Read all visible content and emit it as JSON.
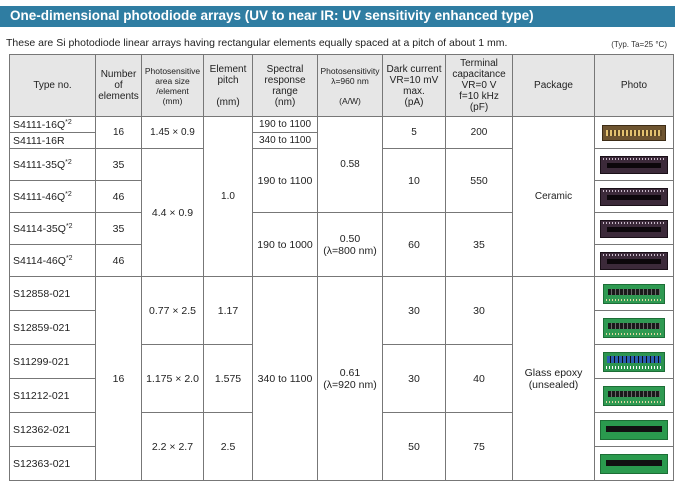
{
  "title": "One-dimensional photodiode arrays (UV to near IR: UV sensitivity enhanced type)",
  "intro": "These are Si photodiode linear arrays having rectangular elements equally spaced at a pitch of about 1 mm.",
  "conditions": "(Typ. Ta=25 °C)",
  "headers": {
    "type": "Type no.",
    "elements": "Number of elements",
    "area": [
      "Photosensitive",
      "area size",
      "/element",
      "(mm)"
    ],
    "pitch": [
      "Element",
      "pitch",
      "",
      "(mm)"
    ],
    "spectral": [
      "Spectral",
      "response",
      "range",
      "(nm)"
    ],
    "sensitivity": [
      "Photosensitivity",
      "λ=960 nm",
      "",
      "(A/W)"
    ],
    "dark": [
      "Dark current",
      "VR=10 mV",
      "max.",
      "(pA)"
    ],
    "capacitance": [
      "Terminal",
      "capacitance",
      "VR=0 V",
      "f=10 kHz",
      "(pF)"
    ],
    "package": "Package",
    "photo": "Photo"
  },
  "footnote_mark": "*2",
  "rows": [
    {
      "type": "S4111-16Q",
      "mark": true
    },
    {
      "type": "S4111-16R",
      "mark": false
    },
    {
      "type": "S4111-35Q",
      "mark": true
    },
    {
      "type": "S4111-46Q",
      "mark": true
    },
    {
      "type": "S4114-35Q",
      "mark": true
    },
    {
      "type": "S4114-46Q",
      "mark": true
    },
    {
      "type": "S12858-021",
      "mark": false
    },
    {
      "type": "S12859-021",
      "mark": false
    },
    {
      "type": "S11299-021",
      "mark": false
    },
    {
      "type": "S11212-021",
      "mark": false
    },
    {
      "type": "S12362-021",
      "mark": false
    },
    {
      "type": "S12363-021",
      "mark": false
    }
  ],
  "values": {
    "elements_16": "16",
    "elements_35": "35",
    "elements_46": "46",
    "elements_35b": "35",
    "elements_46b": "46",
    "elements_glass": "16",
    "area_s4111_16": "1.45 × 0.9",
    "area_ceramic": "4.4 × 0.9",
    "area_s1285x": "0.77 × 2.5",
    "area_s112xx": "1.175 × 2.0",
    "area_s1236x": "2.2 × 2.7",
    "pitch_ceramic": "1.0",
    "pitch_s1285x": "1.17",
    "pitch_s112xx": "1.575",
    "pitch_s1236x": "2.5",
    "spectral_16q": "190 to 1100",
    "spectral_16r": "340 to 1100",
    "spectral_s4111": "190 to 1100",
    "spectral_s4114": "190 to 1000",
    "spectral_glass": "340 to 1100",
    "sens_s4111": "0.58",
    "sens_s4114": "0.50",
    "sens_s4114_note": "(λ=800 nm)",
    "sens_glass": "0.61",
    "sens_glass_note": "(λ=920 nm)",
    "dark_16": "5",
    "dark_s4111": "10",
    "dark_s4114": "60",
    "dark_s1285x": "30",
    "dark_s112xx": "30",
    "dark_s1236x": "50",
    "cap_16": "200",
    "cap_s4111": "550",
    "cap_s4114": "35",
    "cap_s1285x": "30",
    "cap_s112xx": "40",
    "cap_s1236x": "75",
    "package_ceramic": "Ceramic",
    "package_glass": "Glass epoxy",
    "package_glass_note": "(unsealed)"
  },
  "photos": [
    "gold-ceramic-array",
    "dark-ceramic-array",
    "dark-ceramic-array",
    "dark-ceramic-array",
    "dark-ceramic-array",
    "green-board-array",
    "green-board-array",
    "green-board-array-dense",
    "green-board-array",
    "green-board-array-long",
    "green-board-array-long"
  ],
  "colors": {
    "banner": "#2f7da2",
    "header_bg": "#e6e6e6",
    "border": "#777777"
  }
}
